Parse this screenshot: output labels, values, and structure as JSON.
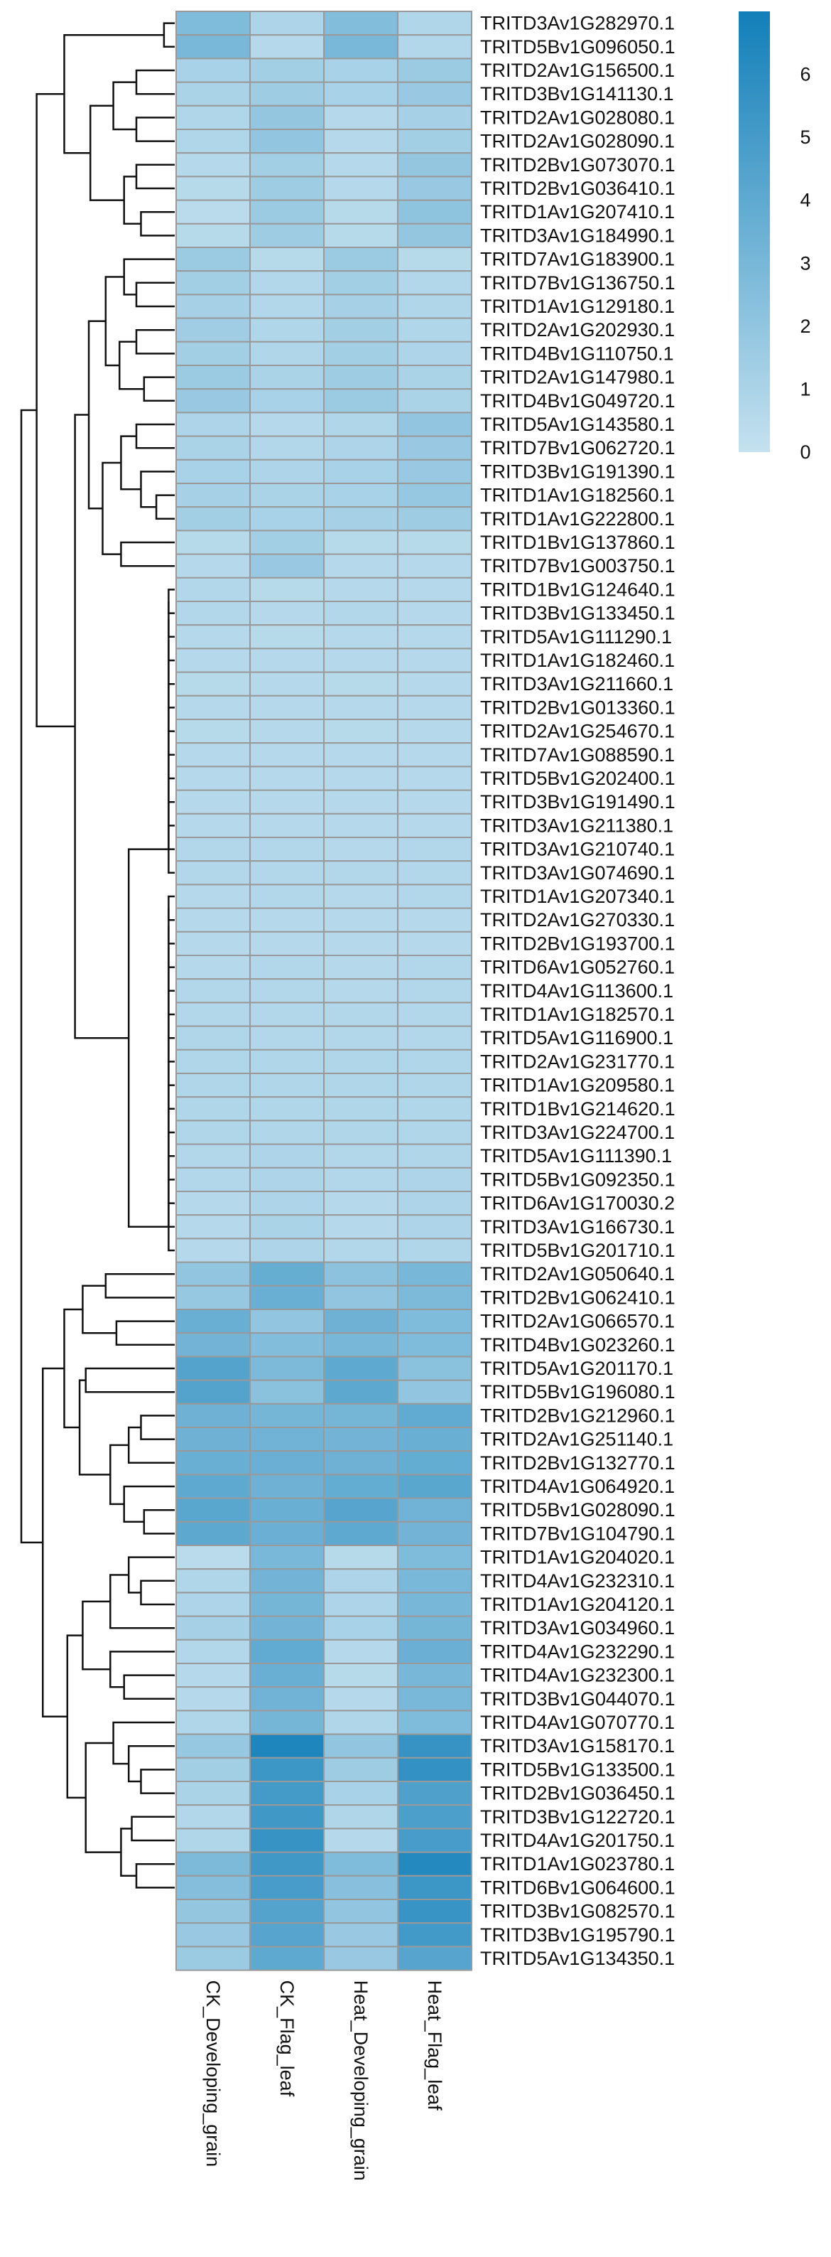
{
  "chart_data": {
    "type": "heatmap",
    "columns": [
      "CK_Developing_grain",
      "CK_Flag_leaf",
      "Heat_Developing_grain",
      "Heat_Flag_leaf"
    ],
    "rows": [
      {
        "gene": "TRITD3Av1G282970.1",
        "values": [
          2.7,
          0.9,
          2.6,
          0.8
        ]
      },
      {
        "gene": "TRITD5Bv1G096050.1",
        "values": [
          2.9,
          0.6,
          2.9,
          0.7
        ]
      },
      {
        "gene": "TRITD2Av1G156500.1",
        "values": [
          1.1,
          1.3,
          1.1,
          1.6
        ]
      },
      {
        "gene": "TRITD3Bv1G141130.1",
        "values": [
          1.0,
          1.5,
          1.1,
          1.7
        ]
      },
      {
        "gene": "TRITD2Av1G028080.1",
        "values": [
          0.8,
          1.9,
          0.6,
          1.2
        ]
      },
      {
        "gene": "TRITD2Av1G028090.1",
        "values": [
          0.8,
          2.0,
          0.6,
          1.3
        ]
      },
      {
        "gene": "TRITD2Bv1G073070.1",
        "values": [
          0.6,
          1.3,
          0.6,
          1.9
        ]
      },
      {
        "gene": "TRITD2Bv1G036410.1",
        "values": [
          0.5,
          1.5,
          0.6,
          1.7
        ]
      },
      {
        "gene": "TRITD1Av1G207410.1",
        "values": [
          0.4,
          1.6,
          0.5,
          2.1
        ]
      },
      {
        "gene": "TRITD3Av1G184990.1",
        "values": [
          0.5,
          1.5,
          0.5,
          1.9
        ]
      },
      {
        "gene": "TRITD7Av1G183900.1",
        "values": [
          1.6,
          0.5,
          1.6,
          0.5
        ]
      },
      {
        "gene": "TRITD7Bv1G136750.1",
        "values": [
          1.3,
          0.7,
          1.3,
          0.7
        ]
      },
      {
        "gene": "TRITD1Av1G129180.1",
        "values": [
          1.2,
          0.7,
          1.2,
          0.8
        ]
      },
      {
        "gene": "TRITD2Av1G202930.1",
        "values": [
          1.4,
          0.8,
          1.3,
          0.8
        ]
      },
      {
        "gene": "TRITD4Bv1G110750.1",
        "values": [
          1.3,
          0.8,
          1.3,
          0.9
        ]
      },
      {
        "gene": "TRITD2Av1G147980.1",
        "values": [
          1.6,
          1.0,
          1.5,
          1.0
        ]
      },
      {
        "gene": "TRITD4Bv1G049720.1",
        "values": [
          1.7,
          1.1,
          1.6,
          1.0
        ]
      },
      {
        "gene": "TRITD5Av1G143580.1",
        "values": [
          0.9,
          0.6,
          0.8,
          2.0
        ]
      },
      {
        "gene": "TRITD7Bv1G062720.1",
        "values": [
          1.0,
          0.7,
          0.9,
          1.7
        ]
      },
      {
        "gene": "TRITD3Bv1G191390.1",
        "values": [
          1.1,
          0.9,
          1.1,
          1.7
        ]
      },
      {
        "gene": "TRITD1Av1G182560.1",
        "values": [
          1.2,
          1.0,
          1.1,
          1.8
        ]
      },
      {
        "gene": "TRITD1Av1G222800.1",
        "values": [
          1.3,
          1.1,
          1.2,
          1.5
        ]
      },
      {
        "gene": "TRITD1Bv1G137860.1",
        "values": [
          0.5,
          1.3,
          0.5,
          0.5
        ]
      },
      {
        "gene": "TRITD7Bv1G003750.1",
        "values": [
          0.6,
          1.7,
          0.6,
          0.6
        ]
      },
      {
        "gene": "TRITD1Bv1G124640.1",
        "values": [
          0.7,
          0.5,
          0.6,
          0.6
        ]
      },
      {
        "gene": "TRITD3Bv1G133450.1",
        "values": [
          0.7,
          0.6,
          0.7,
          0.6
        ]
      },
      {
        "gene": "TRITD5Av1G111290.1",
        "values": [
          0.6,
          0.5,
          0.6,
          0.6
        ]
      },
      {
        "gene": "TRITD1Av1G182460.1",
        "values": [
          0.6,
          0.6,
          0.6,
          0.6
        ]
      },
      {
        "gene": "TRITD3Av1G211660.1",
        "values": [
          0.5,
          0.6,
          0.5,
          0.6
        ]
      },
      {
        "gene": "TRITD2Bv1G013360.1",
        "values": [
          0.6,
          0.6,
          0.6,
          0.6
        ]
      },
      {
        "gene": "TRITD2Av1G254670.1",
        "values": [
          0.5,
          0.6,
          0.5,
          0.6
        ]
      },
      {
        "gene": "TRITD7Av1G088590.1",
        "values": [
          0.6,
          0.6,
          0.6,
          0.6
        ]
      },
      {
        "gene": "TRITD5Bv1G202400.1",
        "values": [
          0.6,
          0.6,
          0.6,
          0.6
        ]
      },
      {
        "gene": "TRITD3Bv1G191490.1",
        "values": [
          0.6,
          0.6,
          0.6,
          0.6
        ]
      },
      {
        "gene": "TRITD3Av1G211380.1",
        "values": [
          0.6,
          0.6,
          0.6,
          0.6
        ]
      },
      {
        "gene": "TRITD3Av1G210740.1",
        "values": [
          0.7,
          0.7,
          0.6,
          0.7
        ]
      },
      {
        "gene": "TRITD3Av1G074690.1",
        "values": [
          0.7,
          0.7,
          0.7,
          0.7
        ]
      },
      {
        "gene": "TRITD1Av1G207340.1",
        "values": [
          0.6,
          0.7,
          0.6,
          0.7
        ]
      },
      {
        "gene": "TRITD2Av1G270330.1",
        "values": [
          0.6,
          0.6,
          0.6,
          0.6
        ]
      },
      {
        "gene": "TRITD2Bv1G193700.1",
        "values": [
          0.6,
          0.6,
          0.6,
          0.6
        ]
      },
      {
        "gene": "TRITD6Av1G052760.1",
        "values": [
          0.6,
          0.7,
          0.6,
          0.7
        ]
      },
      {
        "gene": "TRITD4Av1G113600.1",
        "values": [
          0.7,
          0.7,
          0.6,
          0.7
        ]
      },
      {
        "gene": "TRITD1Av1G182570.1",
        "values": [
          0.7,
          0.7,
          0.7,
          0.7
        ]
      },
      {
        "gene": "TRITD5Av1G116900.1",
        "values": [
          0.8,
          0.7,
          0.7,
          0.7
        ]
      },
      {
        "gene": "TRITD2Av1G231770.1",
        "values": [
          0.8,
          0.8,
          0.8,
          0.8
        ]
      },
      {
        "gene": "TRITD1Av1G209580.1",
        "values": [
          0.8,
          0.8,
          0.8,
          0.8
        ]
      },
      {
        "gene": "TRITD1Bv1G214620.1",
        "values": [
          0.8,
          0.8,
          0.8,
          0.8
        ]
      },
      {
        "gene": "TRITD3Av1G224700.1",
        "values": [
          0.8,
          0.8,
          0.8,
          0.8
        ]
      },
      {
        "gene": "TRITD5Av1G111390.1",
        "values": [
          0.7,
          0.9,
          0.7,
          0.8
        ]
      },
      {
        "gene": "TRITD5Bv1G092350.1",
        "values": [
          0.7,
          0.9,
          0.7,
          0.9
        ]
      },
      {
        "gene": "TRITD6Av1G170030.2",
        "values": [
          0.6,
          0.9,
          0.6,
          0.9
        ]
      },
      {
        "gene": "TRITD3Av1G166730.1",
        "values": [
          0.6,
          1.0,
          0.6,
          0.9
        ]
      },
      {
        "gene": "TRITD5Bv1G201710.1",
        "values": [
          0.6,
          0.9,
          0.7,
          0.8
        ]
      },
      {
        "gene": "TRITD2Av1G050640.1",
        "values": [
          2.0,
          3.7,
          2.2,
          3.0
        ]
      },
      {
        "gene": "TRITD2Bv1G062410.1",
        "values": [
          1.8,
          3.6,
          2.0,
          2.8
        ]
      },
      {
        "gene": "TRITD2Av1G066570.1",
        "values": [
          3.6,
          2.0,
          3.4,
          2.7
        ]
      },
      {
        "gene": "TRITD4Bv1G023260.1",
        "values": [
          3.2,
          2.6,
          3.0,
          2.7
        ]
      },
      {
        "gene": "TRITD5Av1G201170.1",
        "values": [
          4.4,
          2.8,
          4.0,
          2.3
        ]
      },
      {
        "gene": "TRITD5Bv1G196080.1",
        "values": [
          4.4,
          2.3,
          4.1,
          2.0
        ]
      },
      {
        "gene": "TRITD2Bv1G212960.1",
        "values": [
          3.4,
          3.1,
          3.1,
          3.9
        ]
      },
      {
        "gene": "TRITD2Av1G251140.1",
        "values": [
          3.4,
          3.3,
          3.2,
          3.6
        ]
      },
      {
        "gene": "TRITD2Bv1G132770.1",
        "values": [
          3.6,
          3.5,
          3.4,
          3.8
        ]
      },
      {
        "gene": "TRITD4Av1G064920.1",
        "values": [
          4.0,
          3.4,
          3.8,
          4.2
        ]
      },
      {
        "gene": "TRITD5Bv1G028090.1",
        "values": [
          4.2,
          3.6,
          4.3,
          3.3
        ]
      },
      {
        "gene": "TRITD7Bv1G104790.1",
        "values": [
          4.1,
          3.5,
          4.0,
          3.2
        ]
      },
      {
        "gene": "TRITD1Av1G204020.1",
        "values": [
          0.4,
          2.9,
          0.5,
          2.7
        ]
      },
      {
        "gene": "TRITD4Av1G232310.1",
        "values": [
          0.8,
          3.2,
          0.9,
          2.9
        ]
      },
      {
        "gene": "TRITD1Av1G204120.1",
        "values": [
          0.9,
          3.1,
          0.9,
          3.0
        ]
      },
      {
        "gene": "TRITD3Av1G034960.1",
        "values": [
          1.2,
          3.2,
          1.1,
          3.1
        ]
      },
      {
        "gene": "TRITD4Av1G232290.1",
        "values": [
          0.7,
          3.9,
          0.6,
          3.5
        ]
      },
      {
        "gene": "TRITD4Av1G232300.1",
        "values": [
          0.6,
          3.6,
          0.5,
          3.0
        ]
      },
      {
        "gene": "TRITD3Bv1G044070.1",
        "values": [
          0.6,
          3.3,
          0.6,
          2.9
        ]
      },
      {
        "gene": "TRITD4Av1G070770.1",
        "values": [
          0.8,
          3.1,
          0.8,
          2.7
        ]
      },
      {
        "gene": "TRITD3Av1G158170.1",
        "values": [
          1.8,
          6.5,
          2.0,
          5.6
        ]
      },
      {
        "gene": "TRITD5Bv1G133500.1",
        "values": [
          1.3,
          5.3,
          1.5,
          5.7
        ]
      },
      {
        "gene": "TRITD2Bv1G036450.1",
        "values": [
          1.0,
          5.0,
          1.1,
          4.6
        ]
      },
      {
        "gene": "TRITD3Bv1G122720.1",
        "values": [
          0.7,
          5.2,
          0.8,
          4.7
        ]
      },
      {
        "gene": "TRITD4Av1G201750.1",
        "values": [
          0.8,
          5.6,
          0.6,
          4.9
        ]
      },
      {
        "gene": "TRITD1Av1G023780.1",
        "values": [
          2.8,
          5.2,
          2.7,
          6.3
        ]
      },
      {
        "gene": "TRITD6Bv1G064600.1",
        "values": [
          2.5,
          4.9,
          2.4,
          5.3
        ]
      },
      {
        "gene": "TRITD3Bv1G082570.1",
        "values": [
          1.9,
          4.4,
          2.0,
          5.5
        ]
      },
      {
        "gene": "TRITD3Bv1G195790.1",
        "values": [
          1.7,
          4.3,
          1.7,
          5.1
        ]
      },
      {
        "gene": "TRITD5Av1G134350.1",
        "values": [
          1.6,
          4.0,
          1.7,
          4.3
        ]
      }
    ],
    "scale": {
      "min": 0,
      "max": 7,
      "ticks": [
        "0",
        "1",
        "2",
        "3",
        "4",
        "5",
        "6"
      ],
      "low_color": "#c4e1ef",
      "high_color": "#127fb9"
    },
    "cell_border_color": "#999999",
    "legend_position": "top-right",
    "row_dendrogram": true
  }
}
